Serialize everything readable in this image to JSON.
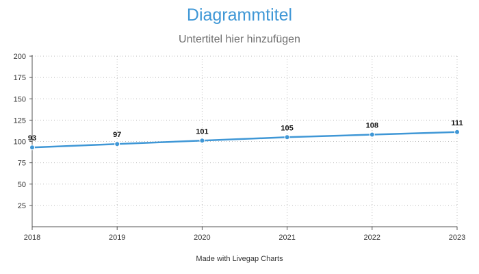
{
  "chart_data": {
    "type": "line",
    "title": "Diagrammtitel",
    "subtitle": "Untertitel hier hinzufügen",
    "x": [
      "2018",
      "2019",
      "2020",
      "2021",
      "2022",
      "2023"
    ],
    "series": [
      {
        "values": [
          93,
          97,
          101,
          105,
          108,
          111
        ]
      }
    ],
    "ylim": [
      0,
      200
    ],
    "yticks": [
      25,
      50,
      75,
      100,
      125,
      150,
      175,
      200
    ],
    "y_tick_labels": [
      "25",
      "50",
      "75",
      "100",
      "125",
      "150",
      "175",
      "200"
    ],
    "xlabel": "",
    "ylabel": "",
    "grid": "dotted",
    "line_color": "#3f97d6",
    "data_labels": [
      "93",
      "97",
      "101",
      "105",
      "108",
      "111"
    ]
  },
  "footer": "Made with Livegap Charts"
}
